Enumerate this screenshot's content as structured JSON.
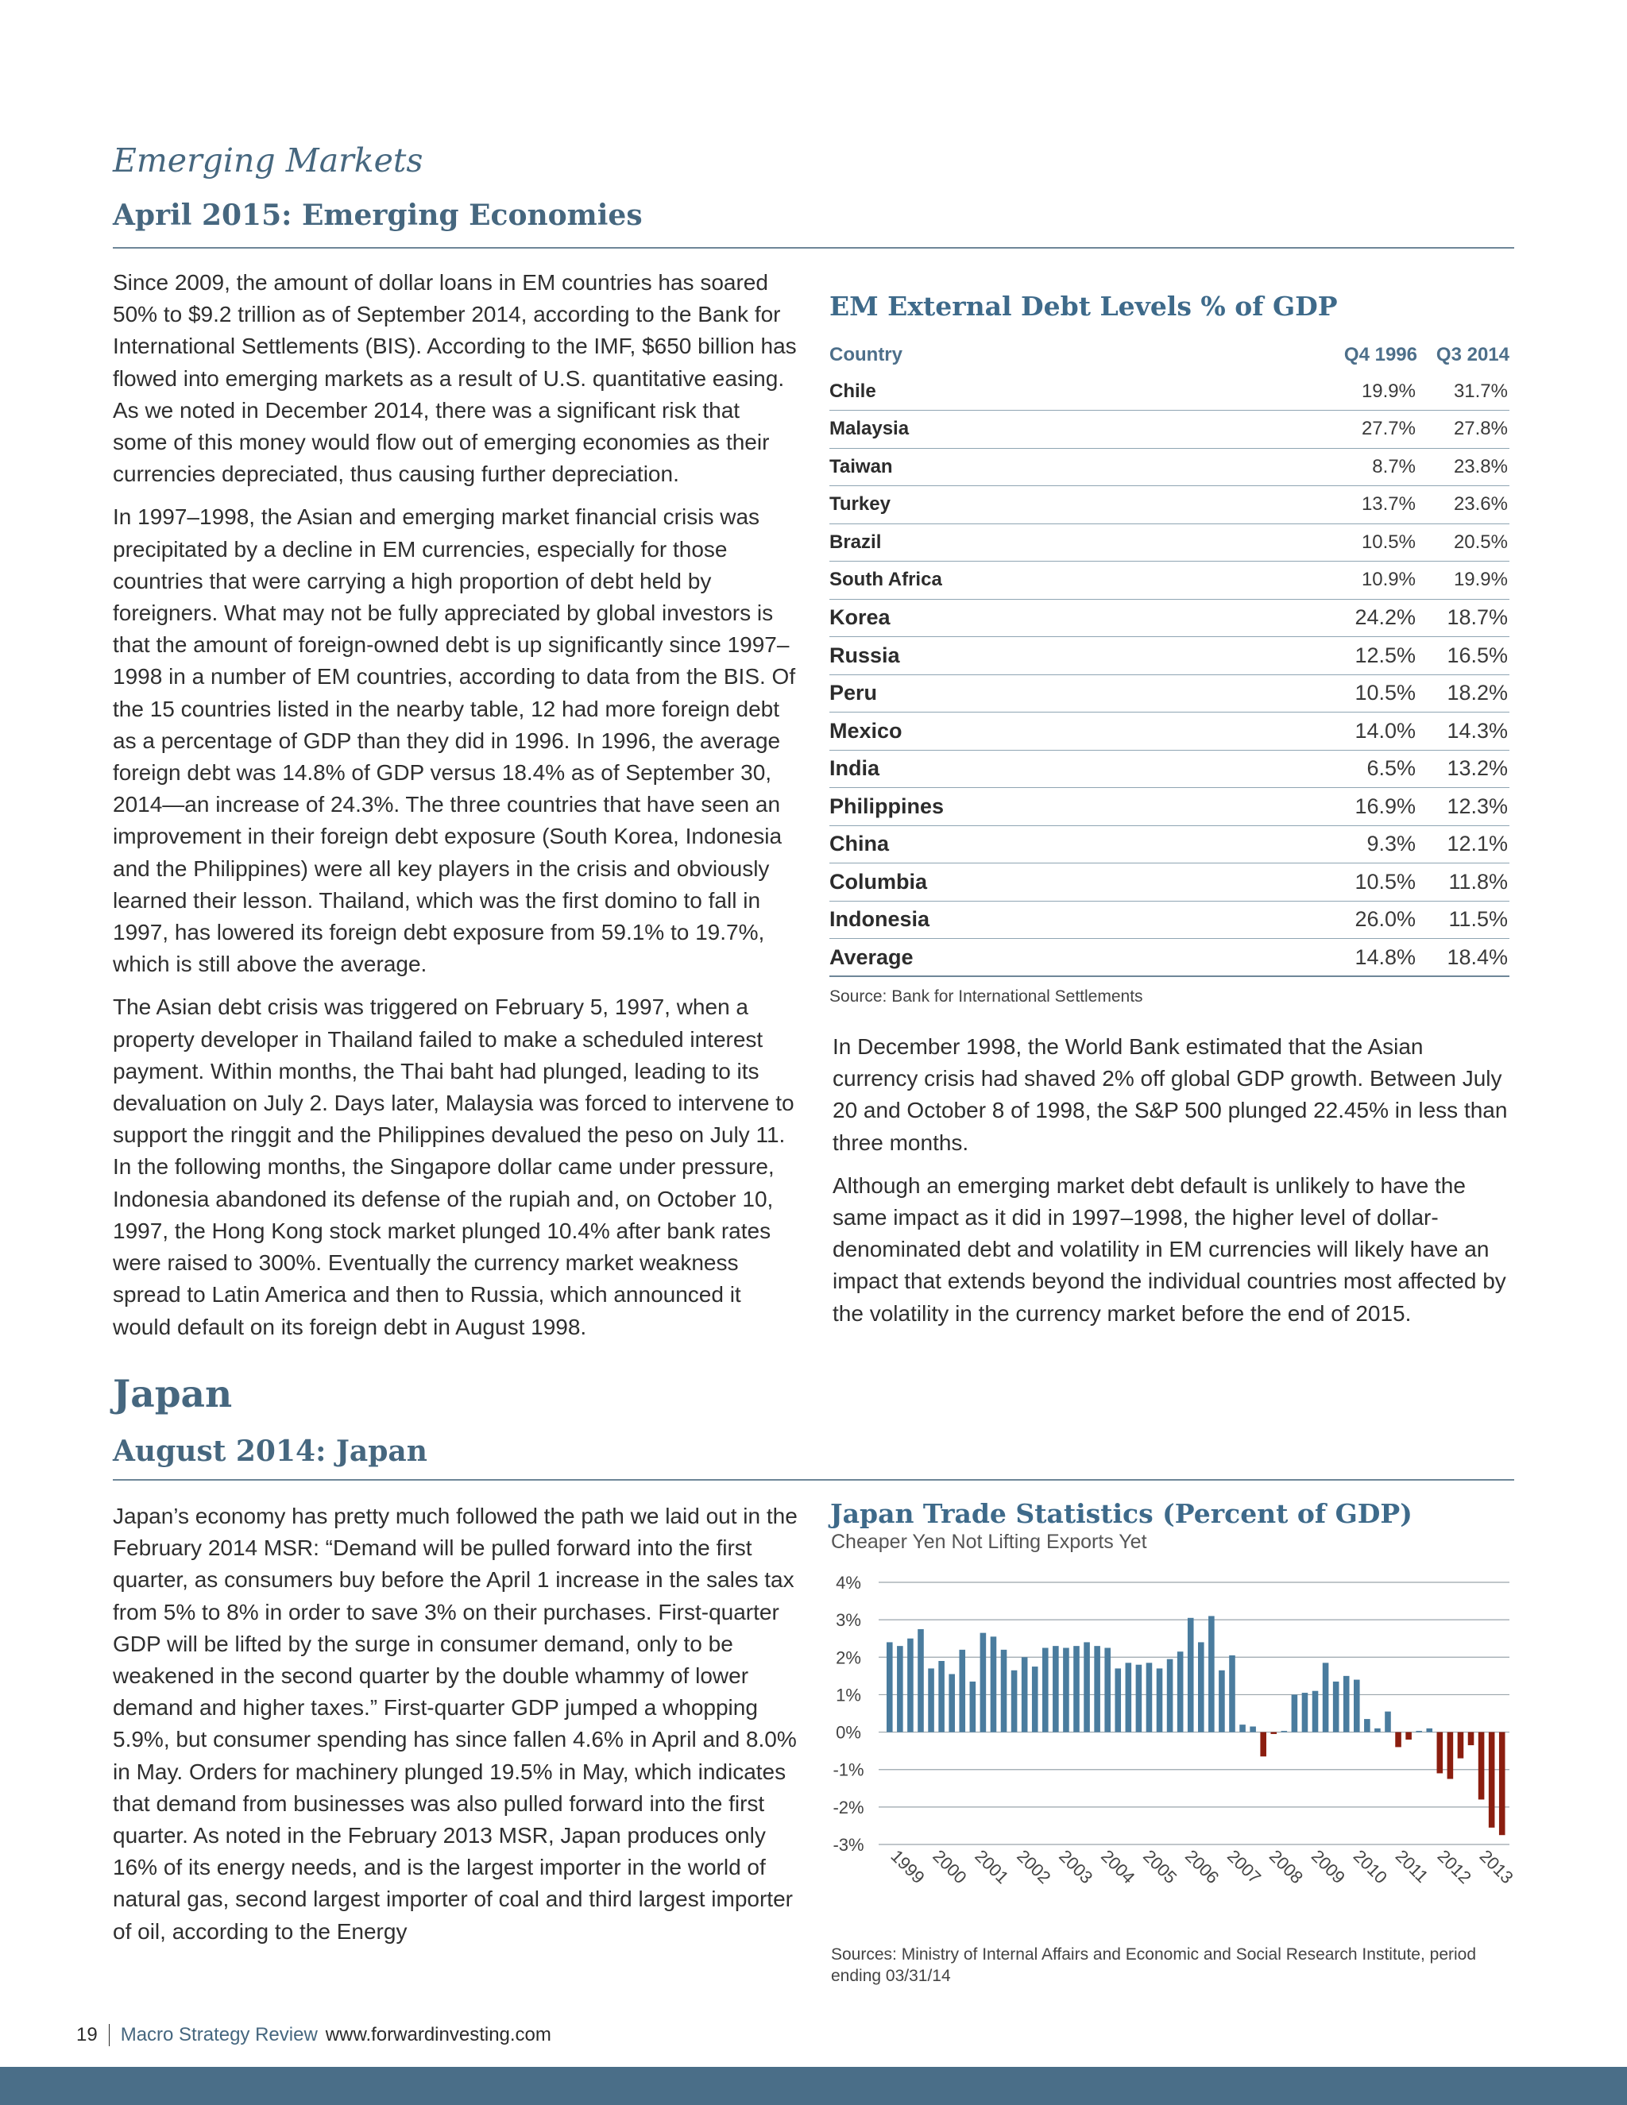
{
  "emerging": {
    "kicker": "Emerging Markets",
    "title": "April 2015: Emerging Economies",
    "left_paragraphs": [
      "Since 2009, the amount of dollar loans in EM countries has soared 50% to $9.2 trillion as of September 2014, according to the Bank for International Settlements (BIS). According to the IMF, $650 billion has flowed into emerging markets as a result of U.S. quantitative easing. As we noted in December 2014, there was a significant risk that some of this money would flow out of emerging economies as their currencies depreciated, thus causing further depreciation.",
      "In 1997–1998, the Asian and emerging market financial crisis was precipitated by a decline in EM currencies, especially for those countries that were carrying a high proportion of debt held by foreigners. What may not be fully appreciated by global investors is that the amount of foreign-owned debt is up significantly since 1997–1998 in a number of EM countries, according to data from the BIS. Of the 15 countries listed in the nearby table, 12 had more foreign debt as a percentage of GDP than they did in 1996. In 1996, the average foreign debt was 14.8% of GDP versus 18.4% as of September 30, 2014—an increase of 24.3%. The three countries that have seen an improvement in their foreign debt exposure (South Korea, Indonesia and the Philippines) were all key players in the crisis and obviously learned their lesson. Thailand, which was the first domino to fall in 1997, has lowered its foreign debt exposure from 59.1% to 19.7%, which is still above the average.",
      "The Asian debt crisis was triggered on February 5, 1997, when a property developer in Thailand failed to make a scheduled interest payment. Within months, the Thai baht had plunged, leading to its devaluation on July 2. Days later, Malaysia was forced to intervene to support the ringgit and the Philippines devalued the peso on July 11. In the following months, the Singapore dollar came under pressure, Indonesia abandoned its defense of the rupiah and, on October 10, 1997, the Hong Kong stock market plunged 10.4% after bank rates were raised to 300%. Eventually the currency market weakness spread to Latin America and then to Russia, which announced it would default on its foreign debt in August 1998."
    ],
    "right_paragraphs": [
      "In December 1998, the World Bank estimated that the Asian currency crisis had shaved 2% off global GDP growth. Between July 20 and October 8 of 1998, the S&P 500 plunged 22.45% in less than three months.",
      "Although an emerging market debt default is unlikely to have the same impact as it did in 1997–1998, the higher level of dollar-denominated debt and volatility in EM currencies will likely have an impact that extends beyond the individual countries most affected by the volatility in the currency market before the end of 2015."
    ]
  },
  "debt_table": {
    "title": "EM External Debt Levels % of GDP",
    "headers": [
      "Country",
      "Q4 1996",
      "Q3 2014"
    ],
    "rows": [
      [
        "Chile",
        "19.9%",
        "31.7%"
      ],
      [
        "Malaysia",
        "27.7%",
        "27.8%"
      ],
      [
        "Taiwan",
        "8.7%",
        "23.8%"
      ],
      [
        "Turkey",
        "13.7%",
        "23.6%"
      ],
      [
        "Brazil",
        "10.5%",
        "20.5%"
      ],
      [
        "South Africa",
        "10.9%",
        "19.9%"
      ],
      [
        "Korea",
        "24.2%",
        "18.7%"
      ],
      [
        "Russia",
        "12.5%",
        "16.5%"
      ],
      [
        "Peru",
        "10.5%",
        "18.2%"
      ],
      [
        "Mexico",
        "14.0%",
        "14.3%"
      ],
      [
        "India",
        "6.5%",
        "13.2%"
      ],
      [
        "Philippines",
        "16.9%",
        "12.3%"
      ],
      [
        "China",
        "9.3%",
        "12.1%"
      ],
      [
        "Columbia",
        "10.5%",
        "11.8%"
      ],
      [
        "Indonesia",
        "26.0%",
        "11.5%"
      ],
      [
        "Average",
        "14.8%",
        "18.4%"
      ]
    ],
    "source": "Source: Bank for International Settlements"
  },
  "japan": {
    "kicker": "Japan",
    "title": "August 2014: Japan",
    "paragraph": "Japan’s economy has pretty much followed the path we laid out in the February 2014 MSR: “Demand will be pulled forward into the first quarter, as consumers buy before the April 1 increase in the sales tax from 5% to 8% in order to save 3% on their purchases. First-quarter GDP will be lifted by the surge in consumer demand, only to be weakened in the second quarter by the double whammy of lower demand and higher taxes.” First-quarter GDP jumped a whopping 5.9%, but consumer spending has since fallen 4.6% in April and 8.0% in May. Orders for machinery plunged 19.5% in May, which indicates that demand from businesses was also pulled forward into the first quarter. As noted in the February 2013 MSR, Japan produces only 16% of its energy needs, and is the largest importer in the world of natural gas, second largest importer of coal and third largest importer of oil, according to the Energy"
  },
  "chart_data": {
    "type": "bar",
    "title": "Japan Trade Statistics (Percent of GDP)",
    "subtitle": "Cheaper Yen Not Lifting Exports Yet",
    "ylim": [
      -3,
      4
    ],
    "yticks": [
      "4%",
      "3%",
      "2%",
      "1%",
      "0%",
      "-1%",
      "-2%",
      "-3%"
    ],
    "xticks": [
      "1999",
      "2000",
      "2001",
      "2002",
      "2003",
      "2004",
      "2005",
      "2006",
      "2007",
      "2008",
      "2009",
      "2010",
      "2011",
      "2012",
      "2013"
    ],
    "grid": true,
    "colors": {
      "positive": "#4a7c9e",
      "negative": "#8b1e0f"
    },
    "values": [
      2.4,
      2.3,
      2.5,
      2.75,
      1.7,
      1.9,
      1.55,
      2.2,
      1.35,
      2.65,
      2.55,
      2.2,
      1.65,
      2.0,
      1.75,
      2.25,
      2.3,
      2.25,
      2.3,
      2.4,
      2.3,
      2.25,
      1.7,
      1.85,
      1.8,
      1.85,
      1.7,
      1.95,
      2.15,
      3.05,
      2.4,
      3.1,
      1.65,
      2.05,
      0.2,
      0.15,
      -0.65,
      -0.05,
      0.0,
      1.0,
      1.05,
      1.1,
      1.85,
      1.35,
      1.5,
      1.4,
      0.35,
      0.1,
      0.55,
      -0.4,
      -0.2,
      0.0,
      0.1,
      -1.1,
      -1.25,
      -0.7,
      -0.35,
      -1.8,
      -2.55,
      -2.75
    ],
    "source": "Sources: Ministry of Internal Affairs and Economic and Social Research Institute, period ending 03/31/14"
  },
  "footer": {
    "page": "19",
    "publication": "Macro Strategy Review",
    "url": "www.forwardinvesting.com"
  }
}
